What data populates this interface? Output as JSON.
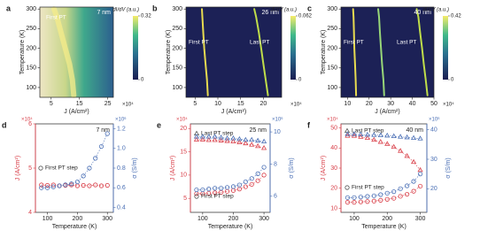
{
  "chart_data": [
    {
      "label": "a",
      "type": "heatmap",
      "annotation": "7 nm",
      "xlabel": "J (A/cm²)",
      "x_multiplier": "×10⁴",
      "ylabel": "Temperature (K)",
      "colorbar_label": "dI/dV (a.u.)",
      "clim": [
        0,
        0.32
      ],
      "cticks": [
        0,
        0.32
      ],
      "xlim": [
        1,
        27
      ],
      "xticks": [
        5,
        15,
        25
      ],
      "ylim": [
        75,
        305
      ],
      "yticks": [
        100,
        150,
        200,
        250,
        300
      ],
      "series": [
        {
          "name": "First PT",
          "color": "#f6ec8a",
          "x": [
            13,
            12.5,
            11.5,
            10,
            8.5,
            7,
            6
          ],
          "values": [
            80,
            120,
            160,
            200,
            240,
            280,
            300
          ]
        }
      ]
    },
    {
      "label": "b",
      "type": "heatmap",
      "annotation": "26 nm",
      "xlabel": "J (A/cm²)",
      "x_multiplier": "×10⁴",
      "ylabel": "Temperature (K)",
      "colorbar_label": "dI/dV (a.u.)",
      "clim": [
        0,
        0.062
      ],
      "cticks": [
        0,
        0.062
      ],
      "xlim": [
        3,
        24
      ],
      "xticks": [
        5,
        10,
        15,
        20
      ],
      "ylim": [
        75,
        305
      ],
      "yticks": [
        100,
        150,
        200,
        250,
        300
      ],
      "series": [
        {
          "name": "First PT",
          "color": "#f2e650",
          "x": [
            7.8,
            7.6,
            7.3,
            7,
            6.8,
            6.6,
            6.5
          ],
          "values": [
            80,
            120,
            160,
            200,
            240,
            280,
            300
          ]
        },
        {
          "name": "Last PT",
          "color": "#c8e84a",
          "x": [
            21,
            20.5,
            20,
            19.5,
            19,
            18.4,
            18
          ],
          "values": [
            80,
            120,
            160,
            200,
            240,
            280,
            300
          ]
        }
      ]
    },
    {
      "label": "c",
      "type": "heatmap",
      "annotation": "40 nm",
      "xlabel": "J (A/cm²)",
      "x_multiplier": "×10⁴",
      "ylabel": "Temperature (K)",
      "colorbar_label": "dI/dV (a.u.)",
      "clim": [
        0,
        0.42
      ],
      "cticks": [
        0,
        0.42
      ],
      "xlim": [
        7,
        50
      ],
      "xticks": [
        10,
        20,
        30,
        40,
        50
      ],
      "ylim": [
        75,
        305
      ],
      "yticks": [
        100,
        150,
        200,
        250,
        300
      ],
      "series": [
        {
          "name": "First PT",
          "color": "#f2e650",
          "x": [
            14,
            13.8,
            13.5,
            13.2,
            13,
            12.8,
            12.6
          ],
          "values": [
            80,
            120,
            160,
            200,
            240,
            280,
            300
          ]
        },
        {
          "color": "#9fe07a",
          "x": [
            27,
            26.6,
            26,
            25.5,
            25,
            24.6,
            24.2
          ],
          "values": [
            80,
            120,
            160,
            200,
            240,
            280,
            300
          ]
        },
        {
          "name": "Last PT",
          "color": "#c8e84a",
          "x": [
            47,
            46.2,
            45.3,
            44.5,
            43.6,
            42.8,
            42
          ],
          "values": [
            80,
            120,
            160,
            200,
            240,
            280,
            300
          ]
        }
      ]
    },
    {
      "label": "d",
      "type": "dual-scatter",
      "annotation": "7 nm",
      "xlabel": "Temperature (K)",
      "ylabel": "J (A/cm²)",
      "y2label": "σ (S/m)",
      "y_multiplier": "×10⁴",
      "y2_multiplier": "×10⁶",
      "x": [
        80,
        100,
        120,
        140,
        160,
        180,
        200,
        220,
        240,
        260,
        280,
        300
      ],
      "xlim": [
        60,
        320
      ],
      "xticks": [
        100,
        200,
        300
      ],
      "ylim": [
        4,
        6
      ],
      "yticks": [
        4,
        5,
        6
      ],
      "y2lim": [
        0.35,
        1.25
      ],
      "y2ticks": [
        0.4,
        0.6,
        0.8,
        {
          "value": 1,
          "label": "1.0"
        },
        1.2
      ],
      "series": [
        {
          "name": "First PT step",
          "color": "#d9404a",
          "marker": "circle",
          "values": [
            4.62,
            4.61,
            4.62,
            4.6,
            4.61,
            4.62,
            4.6,
            4.61,
            4.6,
            4.62,
            4.6,
            4.61
          ]
        },
        {
          "color": "#4a6fb5",
          "marker": "circle",
          "axis": "y2",
          "values": [
            0.6,
            0.6,
            0.61,
            0.62,
            0.63,
            0.64,
            0.66,
            0.72,
            0.8,
            0.9,
            1.02,
            1.15
          ]
        }
      ]
    },
    {
      "label": "e",
      "type": "dual-scatter",
      "annotation": "25 nm",
      "xlabel": "Temperature (K)",
      "ylabel": "J (A/cm²)",
      "y2label": "σ (S/m)",
      "y_multiplier": "×10⁴",
      "y2_multiplier": "×10⁶",
      "x": [
        80,
        100,
        120,
        140,
        160,
        180,
        200,
        220,
        240,
        260,
        280,
        300
      ],
      "xlim": [
        60,
        320
      ],
      "xticks": [
        100,
        200,
        300
      ],
      "ylim": [
        2,
        21
      ],
      "yticks": [
        5,
        10,
        15,
        20
      ],
      "y2lim": [
        5,
        10.5
      ],
      "y2ticks": [
        6,
        8,
        10
      ],
      "series": [
        {
          "name": "Last PT step",
          "color": "#d9404a",
          "marker": "triangle",
          "values": [
            17.6,
            17.6,
            17.5,
            17.5,
            17.4,
            17.3,
            17.2,
            17,
            16.8,
            16.5,
            16.2,
            15.8
          ]
        },
        {
          "color": "#4a6fb5",
          "marker": "triangle",
          "axis": "y2",
          "values": [
            9.7,
            9.7,
            9.7,
            9.7,
            9.65,
            9.6,
            9.6,
            9.55,
            9.5,
            9.5,
            9.45,
            9.4
          ]
        },
        {
          "name": "First PT step",
          "color": "#d9404a",
          "marker": "circle",
          "values": [
            6,
            6,
            6.1,
            6.2,
            6.3,
            6.5,
            6.7,
            7,
            7.5,
            8,
            8.8,
            10
          ]
        },
        {
          "color": "#4a6fb5",
          "marker": "circle",
          "axis": "y2",
          "values": [
            6.4,
            6.4,
            6.45,
            6.5,
            6.5,
            6.55,
            6.6,
            6.7,
            6.9,
            7.1,
            7.4,
            7.8
          ]
        }
      ]
    },
    {
      "label": "f",
      "type": "dual-scatter",
      "annotation": "40 nm",
      "xlabel": "Temperature (K)",
      "ylabel": "J (A/cm²)",
      "y2label": "σ (S/m)",
      "y_multiplier": "×10⁴",
      "y2_multiplier": "×10⁶",
      "x": [
        80,
        100,
        120,
        140,
        160,
        180,
        200,
        220,
        240,
        260,
        280,
        300
      ],
      "xlim": [
        60,
        320
      ],
      "xticks": [
        100,
        200,
        300
      ],
      "ylim": [
        8,
        52
      ],
      "yticks": [
        10,
        20,
        30,
        40,
        50
      ],
      "y2lim": [
        12,
        42
      ],
      "y2ticks": [
        20,
        30,
        40
      ],
      "series": [
        {
          "name": "Last PT step",
          "color": "#d9404a",
          "marker": "triangle",
          "values": [
            46,
            46,
            45.5,
            45,
            44,
            43,
            42,
            40.5,
            38.5,
            36,
            33,
            29
          ]
        },
        {
          "color": "#4a6fb5",
          "marker": "triangle",
          "axis": "y2",
          "values": [
            38.5,
            38.5,
            38.4,
            38.3,
            38.2,
            38.1,
            38,
            37.8,
            37.6,
            37.4,
            37.2,
            37
          ]
        },
        {
          "name": "First PT step",
          "color": "#d9404a",
          "marker": "circle",
          "values": [
            13,
            13,
            13.2,
            13.4,
            13.6,
            14,
            14.5,
            15,
            16,
            17,
            18.5,
            21
          ]
        },
        {
          "color": "#4a6fb5",
          "marker": "circle",
          "axis": "y2",
          "values": [
            17,
            17,
            17.2,
            17.4,
            17.6,
            18,
            18.5,
            19,
            20,
            21,
            22.5,
            25
          ]
        }
      ]
    }
  ]
}
